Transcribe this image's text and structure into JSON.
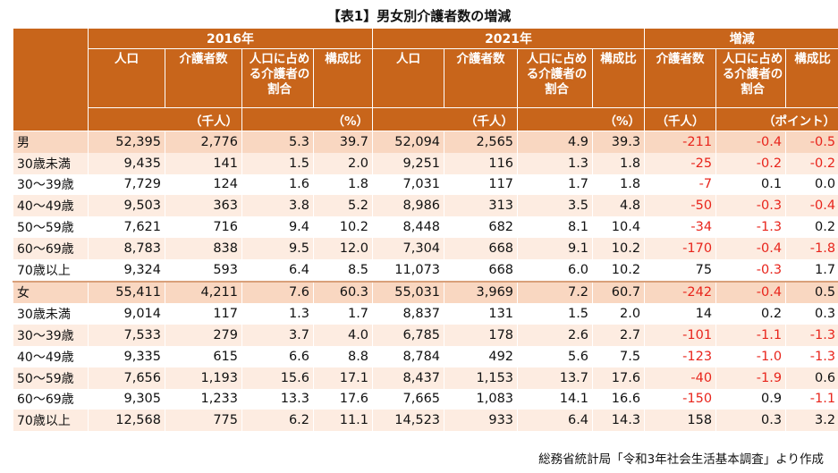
{
  "title": "【表1】男女別介護者数の増減",
  "header": {
    "year1": "2016年",
    "year2": "2021年",
    "change": "増減",
    "cols_year": [
      "人口",
      "介護者数",
      "人口に占める介護者の割合",
      "構成比"
    ],
    "cols_change": [
      "介護者数",
      "人口に占める介護者の割合",
      "構成比"
    ],
    "unit_thousand": "（千人）",
    "unit_percent": "（%）",
    "unit_point": "（ポイント）"
  },
  "rows": [
    {
      "label": "男",
      "values": [
        "52,395",
        "2,776",
        "5.3",
        "39.7",
        "52,094",
        "2,565",
        "4.9",
        "39.3",
        "-211",
        "-0.4",
        "-0.5"
      ]
    },
    {
      "label": "30歳未満",
      "values": [
        "9,435",
        "141",
        "1.5",
        "2.0",
        "9,251",
        "116",
        "1.3",
        "1.8",
        "-25",
        "-0.2",
        "-0.2"
      ]
    },
    {
      "label": "30～39歳",
      "values": [
        "7,729",
        "124",
        "1.6",
        "1.8",
        "7,031",
        "117",
        "1.7",
        "1.8",
        "-7",
        "0.1",
        "0.0"
      ]
    },
    {
      "label": "40～49歳",
      "values": [
        "9,503",
        "363",
        "3.8",
        "5.2",
        "8,986",
        "313",
        "3.5",
        "4.8",
        "-50",
        "-0.3",
        "-0.4"
      ]
    },
    {
      "label": "50～59歳",
      "values": [
        "7,621",
        "716",
        "9.4",
        "10.2",
        "8,448",
        "682",
        "8.1",
        "10.4",
        "-34",
        "-1.3",
        "0.2"
      ]
    },
    {
      "label": "60～69歳",
      "values": [
        "8,783",
        "838",
        "9.5",
        "12.0",
        "7,304",
        "668",
        "9.1",
        "10.2",
        "-170",
        "-0.4",
        "-1.8"
      ]
    },
    {
      "label": "70歳以上",
      "values": [
        "9,324",
        "593",
        "6.4",
        "8.5",
        "11,073",
        "668",
        "6.0",
        "10.2",
        "75",
        "-0.3",
        "1.7"
      ]
    },
    {
      "label": "女",
      "values": [
        "55,411",
        "4,211",
        "7.6",
        "60.3",
        "55,031",
        "3,969",
        "7.2",
        "60.7",
        "-242",
        "-0.4",
        "0.5"
      ]
    },
    {
      "label": "30歳未満",
      "values": [
        "9,014",
        "117",
        "1.3",
        "1.7",
        "8,837",
        "131",
        "1.5",
        "2.0",
        "14",
        "0.2",
        "0.3"
      ]
    },
    {
      "label": "30～39歳",
      "values": [
        "7,533",
        "279",
        "3.7",
        "4.0",
        "6,785",
        "178",
        "2.6",
        "2.7",
        "-101",
        "-1.1",
        "-1.3"
      ]
    },
    {
      "label": "40～49歳",
      "values": [
        "9,335",
        "615",
        "6.6",
        "8.8",
        "8,784",
        "492",
        "5.6",
        "7.5",
        "-123",
        "-1.0",
        "-1.3"
      ]
    },
    {
      "label": "50～59歳",
      "values": [
        "7,656",
        "1,193",
        "15.6",
        "17.1",
        "8,437",
        "1,153",
        "13.7",
        "17.6",
        "-40",
        "-1.9",
        "0.6"
      ]
    },
    {
      "label": "60～69歳",
      "values": [
        "9,305",
        "1,233",
        "13.3",
        "17.6",
        "7,665",
        "1,083",
        "14.1",
        "16.6",
        "-150",
        "0.9",
        "-1.1"
      ]
    },
    {
      "label": "70歳以上",
      "values": [
        "12,568",
        "775",
        "6.2",
        "11.1",
        "14,523",
        "933",
        "6.4",
        "14.3",
        "158",
        "0.3",
        "3.2"
      ]
    }
  ],
  "colors": {
    "header_bg": "#c8651b",
    "group_row_bg": "#f9d7c1",
    "band_row_bg": "#fdece1",
    "negative": "#e8251c"
  },
  "source": "総務省統計局「令和3年社会生活基本調査」より作成"
}
